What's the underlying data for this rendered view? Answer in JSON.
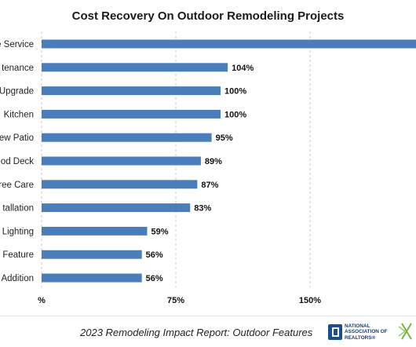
{
  "chart_data": {
    "type": "bar",
    "orientation": "horizontal",
    "title": "Cost Recovery On Outdoor Remodeling Projects",
    "categories": [
      "...e Service",
      "...tenance",
      "...Upgrade",
      "...Kitchen",
      "...ew Patio",
      "...od Deck",
      "...ree Care",
      "...tallation",
      "Lighting",
      "Feature",
      "Addition"
    ],
    "category_labels_visible": [
      "e Service",
      "tenance",
      "Upgrade",
      "Kitchen",
      "ew Patio",
      "od Deck",
      "ree Care",
      "tallation",
      "Lighting",
      "Feature",
      "Addition"
    ],
    "values": [
      null,
      104,
      100,
      100,
      95,
      89,
      87,
      83,
      59,
      56,
      56
    ],
    "value_labels": [
      "",
      "104%",
      "100%",
      "100%",
      "95%",
      "89%",
      "87%",
      "83%",
      "59%",
      "56%",
      "56%"
    ],
    "x_axis": {
      "ticks": [
        0,
        75,
        150
      ],
      "tick_labels": [
        "%",
        "75%",
        "150%"
      ],
      "visible_range": [
        0,
        206
      ]
    },
    "grid": "vertical dashed",
    "bar_color": "#4a7ebb",
    "grid_color": "#c8c8c8"
  },
  "footer": {
    "source": "2023 Remodeling Impact Report: Outdoor Features",
    "nar_logo_text": [
      "NATIONAL",
      "ASSOCIATION OF",
      "REALTORS®"
    ],
    "nar_logo_color": "#1b4e8c",
    "partner_logo_color": "#7cb342"
  }
}
